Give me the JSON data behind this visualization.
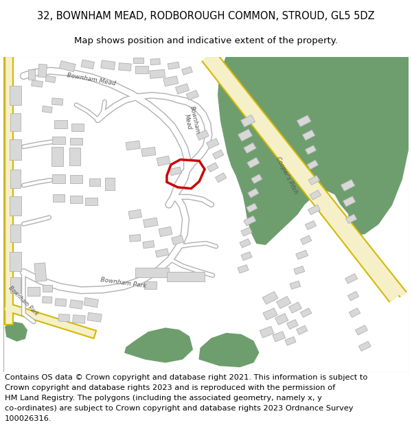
{
  "title_line1": "32, BOWNHAM MEAD, RODBOROUGH COMMON, STROUD, GL5 5DZ",
  "title_line2": "Map shows position and indicative extent of the property.",
  "footer_lines": [
    "Contains OS data © Crown copyright and database right 2021. This information is subject to",
    "Crown copyright and database rights 2023 and is reproduced with the permission of",
    "HM Land Registry. The polygons (including the associated geometry, namely x, y",
    "co-ordinates) are subject to Crown copyright and database rights 2023 Ordnance Survey",
    "100026316."
  ],
  "title_fontsize": 10.5,
  "subtitle_fontsize": 9.5,
  "footer_fontsize": 8.2,
  "map_bg_color": "#f7f7f7",
  "green_color": "#6e9e6e",
  "yellow_fill": "#f5f0c8",
  "yellow_edge": "#d4b800",
  "road_fill": "#e8e8e8",
  "road_edge": "#c0c0c0",
  "plot_outline_color": "#cc0000",
  "white_road": "#ffffff",
  "fig_width": 6.0,
  "fig_height": 6.25
}
